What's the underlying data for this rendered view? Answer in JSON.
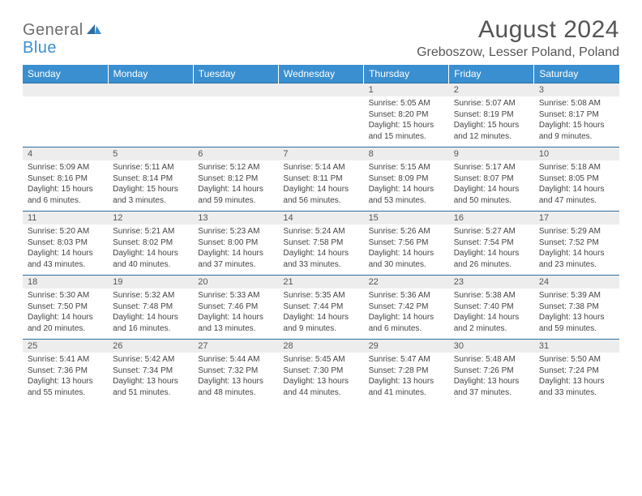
{
  "logo": {
    "text_main": "General",
    "text_accent": "Blue"
  },
  "title": "August 2024",
  "location": "Greboszow, Lesser Poland, Poland",
  "colors": {
    "header_bg": "#3a8fd0",
    "header_text": "#ffffff",
    "date_row_bg": "#ededed",
    "date_row_border": "#2f6ea0",
    "body_text": "#444444",
    "logo_grey": "#6e6e6e",
    "logo_blue": "#3a8fd0"
  },
  "typography": {
    "title_fontsize": 30,
    "location_fontsize": 16,
    "weekday_fontsize": 12,
    "date_fontsize": 11,
    "cell_fontsize": 10
  },
  "weekdays": [
    "Sunday",
    "Monday",
    "Tuesday",
    "Wednesday",
    "Thursday",
    "Friday",
    "Saturday"
  ],
  "weeks": [
    {
      "dates": [
        "",
        "",
        "",
        "",
        "1",
        "2",
        "3"
      ],
      "cells": [
        null,
        null,
        null,
        null,
        {
          "sunrise": "Sunrise: 5:05 AM",
          "sunset": "Sunset: 8:20 PM",
          "daylight1": "Daylight: 15 hours",
          "daylight2": "and 15 minutes."
        },
        {
          "sunrise": "Sunrise: 5:07 AM",
          "sunset": "Sunset: 8:19 PM",
          "daylight1": "Daylight: 15 hours",
          "daylight2": "and 12 minutes."
        },
        {
          "sunrise": "Sunrise: 5:08 AM",
          "sunset": "Sunset: 8:17 PM",
          "daylight1": "Daylight: 15 hours",
          "daylight2": "and 9 minutes."
        }
      ]
    },
    {
      "dates": [
        "4",
        "5",
        "6",
        "7",
        "8",
        "9",
        "10"
      ],
      "cells": [
        {
          "sunrise": "Sunrise: 5:09 AM",
          "sunset": "Sunset: 8:16 PM",
          "daylight1": "Daylight: 15 hours",
          "daylight2": "and 6 minutes."
        },
        {
          "sunrise": "Sunrise: 5:11 AM",
          "sunset": "Sunset: 8:14 PM",
          "daylight1": "Daylight: 15 hours",
          "daylight2": "and 3 minutes."
        },
        {
          "sunrise": "Sunrise: 5:12 AM",
          "sunset": "Sunset: 8:12 PM",
          "daylight1": "Daylight: 14 hours",
          "daylight2": "and 59 minutes."
        },
        {
          "sunrise": "Sunrise: 5:14 AM",
          "sunset": "Sunset: 8:11 PM",
          "daylight1": "Daylight: 14 hours",
          "daylight2": "and 56 minutes."
        },
        {
          "sunrise": "Sunrise: 5:15 AM",
          "sunset": "Sunset: 8:09 PM",
          "daylight1": "Daylight: 14 hours",
          "daylight2": "and 53 minutes."
        },
        {
          "sunrise": "Sunrise: 5:17 AM",
          "sunset": "Sunset: 8:07 PM",
          "daylight1": "Daylight: 14 hours",
          "daylight2": "and 50 minutes."
        },
        {
          "sunrise": "Sunrise: 5:18 AM",
          "sunset": "Sunset: 8:05 PM",
          "daylight1": "Daylight: 14 hours",
          "daylight2": "and 47 minutes."
        }
      ]
    },
    {
      "dates": [
        "11",
        "12",
        "13",
        "14",
        "15",
        "16",
        "17"
      ],
      "cells": [
        {
          "sunrise": "Sunrise: 5:20 AM",
          "sunset": "Sunset: 8:03 PM",
          "daylight1": "Daylight: 14 hours",
          "daylight2": "and 43 minutes."
        },
        {
          "sunrise": "Sunrise: 5:21 AM",
          "sunset": "Sunset: 8:02 PM",
          "daylight1": "Daylight: 14 hours",
          "daylight2": "and 40 minutes."
        },
        {
          "sunrise": "Sunrise: 5:23 AM",
          "sunset": "Sunset: 8:00 PM",
          "daylight1": "Daylight: 14 hours",
          "daylight2": "and 37 minutes."
        },
        {
          "sunrise": "Sunrise: 5:24 AM",
          "sunset": "Sunset: 7:58 PM",
          "daylight1": "Daylight: 14 hours",
          "daylight2": "and 33 minutes."
        },
        {
          "sunrise": "Sunrise: 5:26 AM",
          "sunset": "Sunset: 7:56 PM",
          "daylight1": "Daylight: 14 hours",
          "daylight2": "and 30 minutes."
        },
        {
          "sunrise": "Sunrise: 5:27 AM",
          "sunset": "Sunset: 7:54 PM",
          "daylight1": "Daylight: 14 hours",
          "daylight2": "and 26 minutes."
        },
        {
          "sunrise": "Sunrise: 5:29 AM",
          "sunset": "Sunset: 7:52 PM",
          "daylight1": "Daylight: 14 hours",
          "daylight2": "and 23 minutes."
        }
      ]
    },
    {
      "dates": [
        "18",
        "19",
        "20",
        "21",
        "22",
        "23",
        "24"
      ],
      "cells": [
        {
          "sunrise": "Sunrise: 5:30 AM",
          "sunset": "Sunset: 7:50 PM",
          "daylight1": "Daylight: 14 hours",
          "daylight2": "and 20 minutes."
        },
        {
          "sunrise": "Sunrise: 5:32 AM",
          "sunset": "Sunset: 7:48 PM",
          "daylight1": "Daylight: 14 hours",
          "daylight2": "and 16 minutes."
        },
        {
          "sunrise": "Sunrise: 5:33 AM",
          "sunset": "Sunset: 7:46 PM",
          "daylight1": "Daylight: 14 hours",
          "daylight2": "and 13 minutes."
        },
        {
          "sunrise": "Sunrise: 5:35 AM",
          "sunset": "Sunset: 7:44 PM",
          "daylight1": "Daylight: 14 hours",
          "daylight2": "and 9 minutes."
        },
        {
          "sunrise": "Sunrise: 5:36 AM",
          "sunset": "Sunset: 7:42 PM",
          "daylight1": "Daylight: 14 hours",
          "daylight2": "and 6 minutes."
        },
        {
          "sunrise": "Sunrise: 5:38 AM",
          "sunset": "Sunset: 7:40 PM",
          "daylight1": "Daylight: 14 hours",
          "daylight2": "and 2 minutes."
        },
        {
          "sunrise": "Sunrise: 5:39 AM",
          "sunset": "Sunset: 7:38 PM",
          "daylight1": "Daylight: 13 hours",
          "daylight2": "and 59 minutes."
        }
      ]
    },
    {
      "dates": [
        "25",
        "26",
        "27",
        "28",
        "29",
        "30",
        "31"
      ],
      "cells": [
        {
          "sunrise": "Sunrise: 5:41 AM",
          "sunset": "Sunset: 7:36 PM",
          "daylight1": "Daylight: 13 hours",
          "daylight2": "and 55 minutes."
        },
        {
          "sunrise": "Sunrise: 5:42 AM",
          "sunset": "Sunset: 7:34 PM",
          "daylight1": "Daylight: 13 hours",
          "daylight2": "and 51 minutes."
        },
        {
          "sunrise": "Sunrise: 5:44 AM",
          "sunset": "Sunset: 7:32 PM",
          "daylight1": "Daylight: 13 hours",
          "daylight2": "and 48 minutes."
        },
        {
          "sunrise": "Sunrise: 5:45 AM",
          "sunset": "Sunset: 7:30 PM",
          "daylight1": "Daylight: 13 hours",
          "daylight2": "and 44 minutes."
        },
        {
          "sunrise": "Sunrise: 5:47 AM",
          "sunset": "Sunset: 7:28 PM",
          "daylight1": "Daylight: 13 hours",
          "daylight2": "and 41 minutes."
        },
        {
          "sunrise": "Sunrise: 5:48 AM",
          "sunset": "Sunset: 7:26 PM",
          "daylight1": "Daylight: 13 hours",
          "daylight2": "and 37 minutes."
        },
        {
          "sunrise": "Sunrise: 5:50 AM",
          "sunset": "Sunset: 7:24 PM",
          "daylight1": "Daylight: 13 hours",
          "daylight2": "and 33 minutes."
        }
      ]
    }
  ]
}
